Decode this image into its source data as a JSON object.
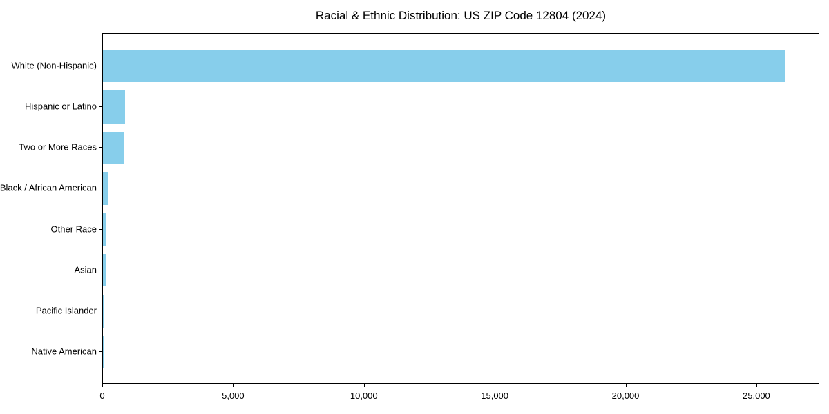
{
  "chart_data": {
    "type": "bar",
    "orientation": "horizontal",
    "title": "Racial & Ethnic Distribution: US ZIP Code 12804 (2024)",
    "categories": [
      "White (Non-Hispanic)",
      "Hispanic or Latino",
      "Two or More Races",
      "Black / African American",
      "Other Race",
      "Asian",
      "Pacific Islander",
      "Native American"
    ],
    "values": [
      26100,
      850,
      800,
      190,
      140,
      115,
      15,
      5
    ],
    "bar_color": "#87CEEB",
    "xlabel": "",
    "ylabel": "",
    "xlim": [
      0,
      27405
    ],
    "x_ticks": [
      0,
      5000,
      10000,
      15000,
      20000,
      25000
    ],
    "x_tick_labels": [
      "0",
      "5,000",
      "10,000",
      "15,000",
      "20,000",
      "25,000"
    ],
    "grid": false,
    "legend": false,
    "bar_relative_height": 0.8,
    "axis_color": "#000000",
    "background_color": "#ffffff"
  }
}
